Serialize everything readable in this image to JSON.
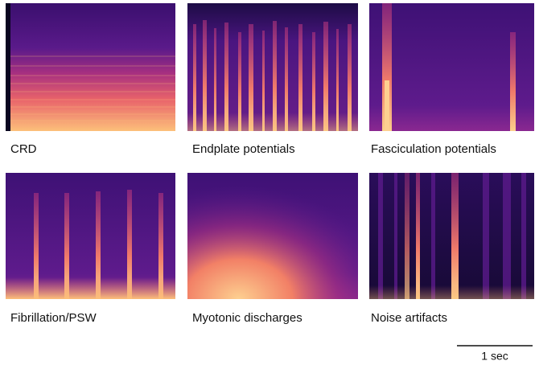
{
  "panels": [
    {
      "label": "CRD"
    },
    {
      "label": "Endplate potentials"
    },
    {
      "label": "Fasciculation potentials"
    },
    {
      "label": "Fibrillation/PSW"
    },
    {
      "label": "Myotonic discharges"
    },
    {
      "label": "Noise artifacts"
    }
  ],
  "scale_bar": {
    "label": "1 sec"
  }
}
